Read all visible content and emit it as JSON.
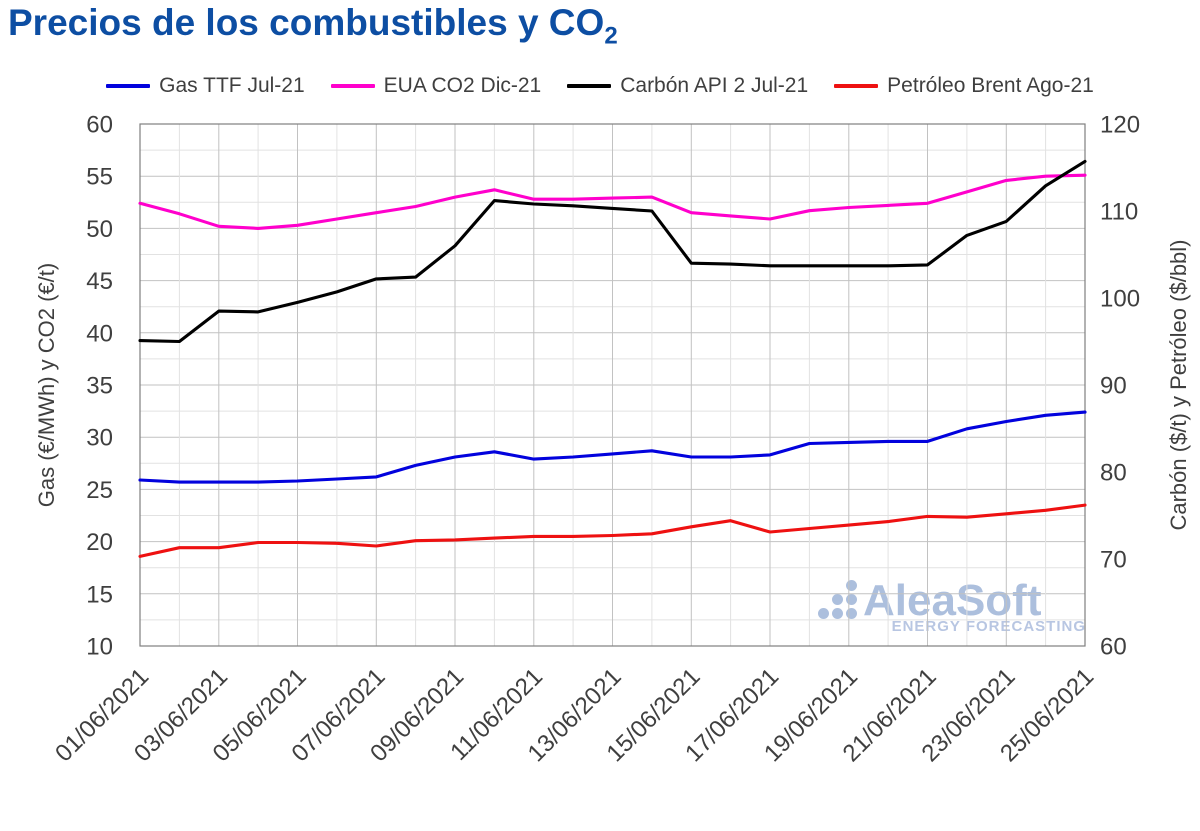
{
  "page": {
    "title_main": "Precios de los combustibles y CO",
    "title_sub": "2",
    "title_color": "#0d4ea3",
    "text_color": "#3f3f3f"
  },
  "watermark": {
    "brand": "AleaSoft",
    "tagline": "ENERGY FORECASTING",
    "color": "#a6badb",
    "tagline_color": "#b2c2e0"
  },
  "chart_data": {
    "type": "line",
    "title": "Precios de los combustibles y CO2",
    "grid": {
      "horizontal_minor_step": 2.5,
      "vertical_every_day": true,
      "major_color": "#c2c2c2",
      "minor_color": "#e2e2e2",
      "frame_color": "#7f7f7f"
    },
    "left_axis": {
      "title": "Gas (€/MWh) y CO2 (€/t)",
      "min": 10,
      "max": 60,
      "major_tick": 5,
      "minor_gridline": 2.5,
      "tick_labels": [
        "60",
        "55",
        "50",
        "45",
        "40",
        "35",
        "30",
        "25",
        "20",
        "15",
        "10"
      ]
    },
    "right_axis": {
      "title": "Carbón ($/t) y Petróleo ($/bbl)",
      "min": 60,
      "max": 120,
      "major_tick": 10,
      "tick_labels": [
        "120",
        "110",
        "100",
        "90",
        "80",
        "70",
        "60"
      ]
    },
    "x_axis": {
      "label_rotation_deg": 45,
      "tick_labels": [
        "01/06/2021",
        "03/06/2021",
        "05/06/2021",
        "07/06/2021",
        "09/06/2021",
        "11/06/2021",
        "13/06/2021",
        "15/06/2021",
        "17/06/2021",
        "19/06/2021",
        "21/06/2021",
        "23/06/2021",
        "25/06/2021"
      ],
      "dates": [
        "01/06/2021",
        "02/06/2021",
        "03/06/2021",
        "04/06/2021",
        "05/06/2021",
        "06/06/2021",
        "07/06/2021",
        "08/06/2021",
        "09/06/2021",
        "10/06/2021",
        "11/06/2021",
        "12/06/2021",
        "13/06/2021",
        "14/06/2021",
        "15/06/2021",
        "16/06/2021",
        "17/06/2021",
        "18/06/2021",
        "19/06/2021",
        "20/06/2021",
        "21/06/2021",
        "22/06/2021",
        "23/06/2021",
        "24/06/2021",
        "25/06/2021"
      ]
    },
    "series": [
      {
        "name": "Gas TTF Jul-21",
        "color": "#0202dd",
        "axis": "left",
        "unit": "€/MWh",
        "values": [
          25.9,
          25.7,
          25.7,
          25.7,
          25.8,
          26.0,
          26.2,
          27.3,
          28.1,
          28.6,
          27.9,
          28.1,
          28.4,
          28.7,
          28.1,
          28.1,
          28.3,
          29.4,
          29.5,
          29.6,
          29.6,
          30.8,
          31.5,
          32.1,
          32.4
        ]
      },
      {
        "name": "EUA CO2 Dic-21",
        "color": "#ff00cc",
        "axis": "left",
        "unit": "€/t",
        "values": [
          52.4,
          51.4,
          50.2,
          50.0,
          50.3,
          50.9,
          51.5,
          52.1,
          53.0,
          53.7,
          52.8,
          52.8,
          52.9,
          53.0,
          51.5,
          51.2,
          50.9,
          51.7,
          52.0,
          52.2,
          52.4,
          53.5,
          54.6,
          55.0,
          55.1
        ]
      },
      {
        "name": "Carbón API 2 Jul-21",
        "color": "#000000",
        "axis": "right",
        "unit": "$/t",
        "values": [
          95.1,
          95.0,
          98.5,
          98.4,
          99.5,
          100.7,
          102.2,
          102.4,
          106.0,
          111.2,
          110.8,
          110.6,
          110.3,
          110.0,
          104.0,
          103.9,
          103.7,
          103.7,
          103.7,
          103.7,
          103.8,
          107.2,
          108.8,
          112.9,
          115.7
        ]
      },
      {
        "name": "Petróleo Brent Ago-21",
        "color": "#ee1111",
        "axis": "right",
        "unit": "$/bbl",
        "values": [
          70.3,
          71.3,
          71.3,
          71.9,
          71.9,
          71.8,
          71.5,
          72.1,
          72.2,
          72.4,
          72.6,
          72.6,
          72.7,
          72.9,
          73.7,
          74.4,
          73.1,
          73.5,
          73.9,
          74.3,
          74.9,
          74.8,
          75.2,
          75.6,
          76.2
        ]
      }
    ]
  }
}
